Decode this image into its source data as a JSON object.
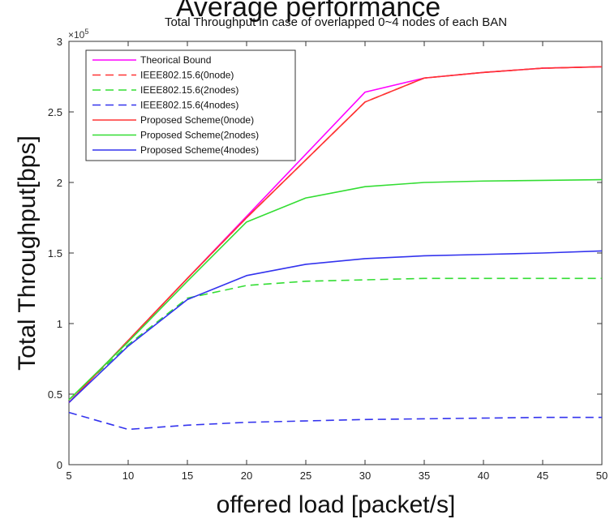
{
  "chart_data": {
    "type": "line",
    "overlay_title": "Average performance",
    "title": "Total Throughput in case of overlapped 0~4 nodes of each BAN",
    "xlabel": "offered load [packet/s]",
    "ylabel": "Total Throughput[bps]",
    "y_exponent_label": "×10",
    "y_exponent_power": "5",
    "y_scale": 100000,
    "xlim": [
      5,
      50
    ],
    "ylim": [
      0,
      300000
    ],
    "x_ticks": [
      5,
      10,
      15,
      20,
      25,
      30,
      35,
      40,
      45,
      50
    ],
    "y_ticks": [
      0,
      50000,
      100000,
      150000,
      200000,
      250000,
      300000
    ],
    "y_tick_labels": [
      "0",
      "0.5",
      "1",
      "1.5",
      "2",
      "2.5",
      "3"
    ],
    "grid": false,
    "legend_position": "top-left",
    "x": [
      5,
      10,
      15,
      20,
      25,
      30,
      35,
      40,
      45,
      50
    ],
    "series": [
      {
        "name": "Theorical Bound",
        "color": "#ff00ff",
        "dash": "solid",
        "values": [
          44000,
          88000,
          132000,
          176000,
          220000,
          264000,
          274000,
          278000,
          281000,
          282000
        ]
      },
      {
        "name": "IEEE802.15.6(0node)",
        "color": "#ff3333",
        "dash": "dashed",
        "values": [
          44000,
          88000,
          132000,
          175000,
          216000,
          257000,
          274000,
          278000,
          281000,
          282000
        ]
      },
      {
        "name": "IEEE802.15.6(2nodes)",
        "color": "#33dd33",
        "dash": "dashed",
        "values": [
          46000,
          85000,
          118000,
          127000,
          130000,
          131000,
          132000,
          132000,
          132000,
          132000
        ]
      },
      {
        "name": "IEEE802.15.6(4nodes)",
        "color": "#3333ee",
        "dash": "dashed",
        "values": [
          37000,
          25000,
          28000,
          30000,
          31000,
          32000,
          32500,
          33000,
          33500,
          33500
        ]
      },
      {
        "name": "Proposed Scheme(0node)",
        "color": "#ff3333",
        "dash": "solid",
        "values": [
          44000,
          88000,
          132000,
          175000,
          216000,
          257000,
          274000,
          278000,
          281000,
          282000
        ]
      },
      {
        "name": "Proposed Scheme(2nodes)",
        "color": "#33dd33",
        "dash": "solid",
        "values": [
          46000,
          87000,
          130000,
          172000,
          189000,
          197000,
          200000,
          201000,
          201500,
          202000
        ]
      },
      {
        "name": "Proposed Scheme(4nodes)",
        "color": "#3333ee",
        "dash": "solid",
        "values": [
          44000,
          84000,
          117000,
          134000,
          142000,
          146000,
          148000,
          149000,
          150000,
          151500
        ]
      }
    ]
  }
}
